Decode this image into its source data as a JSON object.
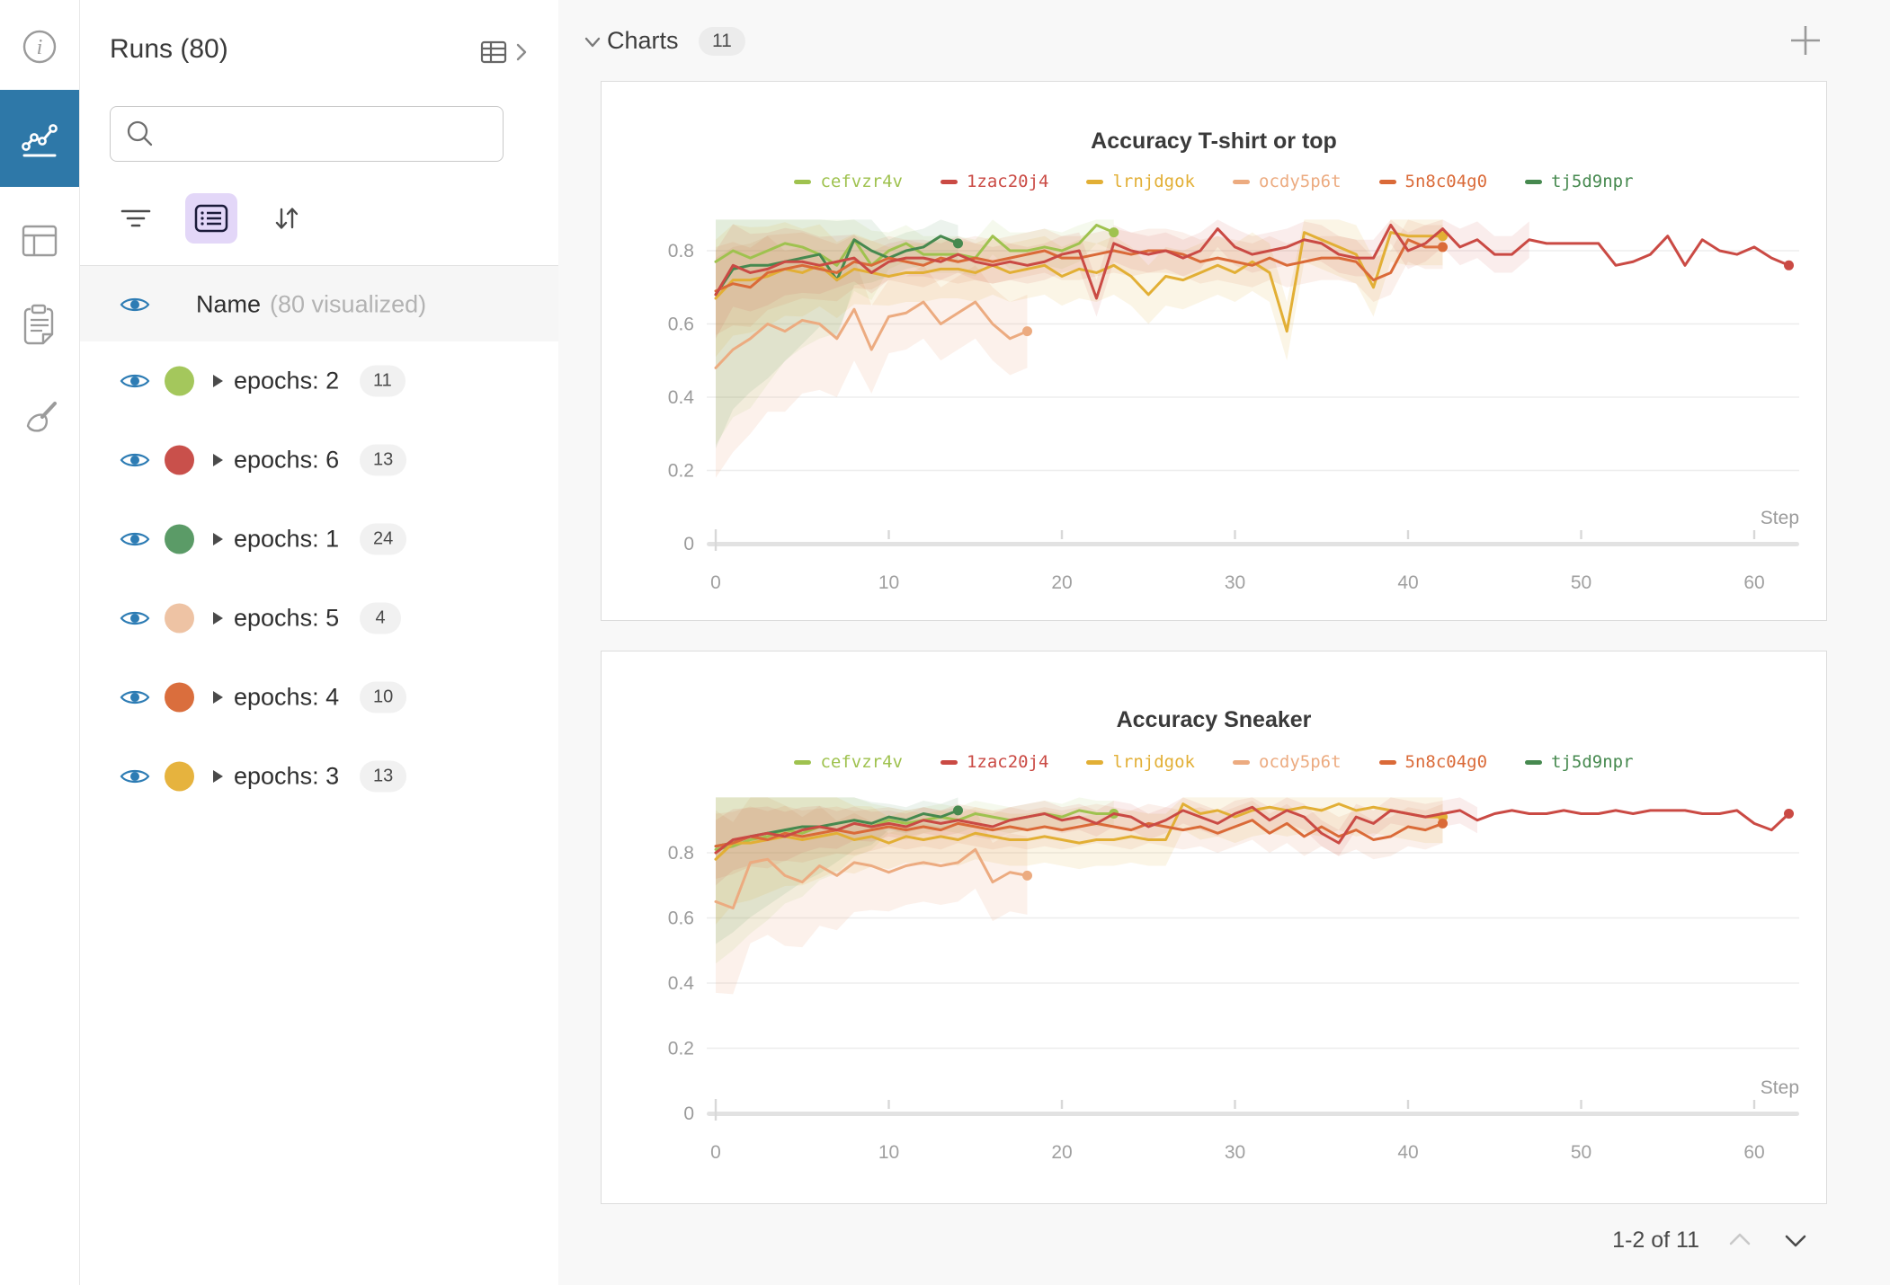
{
  "rail": {
    "icons": [
      {
        "icon": "info-icon",
        "active": false
      },
      {
        "icon": "line-chart-icon",
        "active": true
      },
      {
        "icon": "table-icon",
        "active": false
      },
      {
        "icon": "clipboard-icon",
        "active": false
      },
      {
        "icon": "broom-icon",
        "active": false
      }
    ],
    "active_color": "#2e78a8"
  },
  "runs_panel": {
    "title": "Runs (80)",
    "search": {
      "placeholder": "",
      "value": ""
    },
    "toolbar": {
      "filter_icon": "filter",
      "list_icon": "list-settings",
      "sort_icon": "sort"
    },
    "name_row": {
      "label": "Name",
      "sub": "(80 visualized)"
    },
    "eye_color": "#2d7cb4",
    "groups": [
      {
        "label": "epochs: 2",
        "count": "11",
        "color": "#a4c75c"
      },
      {
        "label": "epochs: 6",
        "count": "13",
        "color": "#c9504b"
      },
      {
        "label": "epochs: 1",
        "count": "24",
        "color": "#5b9b67"
      },
      {
        "label": "epochs: 5",
        "count": "4",
        "color": "#eec3a4"
      },
      {
        "label": "epochs: 4",
        "count": "10",
        "color": "#da6e3d"
      },
      {
        "label": "epochs: 3",
        "count": "13",
        "color": "#e6b33e"
      }
    ]
  },
  "main": {
    "section": {
      "label": "Charts",
      "count": "11"
    },
    "pagination": {
      "label": "1-2 of 11"
    }
  },
  "chart_data": [
    {
      "type": "line",
      "title": "Accuracy T-shirt or top",
      "xlabel": "Step",
      "x_ticks": [
        0,
        10,
        20,
        30,
        40,
        50,
        60
      ],
      "y_ticks": [
        0,
        0.2,
        0.4,
        0.6,
        0.8
      ],
      "xlim": [
        0,
        63
      ],
      "ylim": [
        0,
        0.9
      ],
      "grid": true,
      "legend_position": "top",
      "band_cap": 0.885,
      "series": [
        {
          "name": "cefvzr4v",
          "color": "#9fc24f",
          "band": [
            0.5,
            0.05,
            0.1
          ],
          "values": [
            0.77,
            0.8,
            0.78,
            0.8,
            0.82,
            0.81,
            0.79,
            0.76,
            0.83,
            0.76,
            0.8,
            0.82,
            0.79,
            0.79,
            0.79,
            0.78,
            0.84,
            0.8,
            0.8,
            0.81,
            0.8,
            0.82,
            0.87,
            0.85
          ]
        },
        {
          "name": "1zac20j4",
          "color": "#ca4a44",
          "band": [
            0.12,
            0.05,
            0.1
          ],
          "band_until": 47,
          "values": [
            0.68,
            0.76,
            0.74,
            0.75,
            0.77,
            0.77,
            0.76,
            0.77,
            0.78,
            0.74,
            0.77,
            0.78,
            0.78,
            0.77,
            0.79,
            0.77,
            0.76,
            0.77,
            0.76,
            0.77,
            0.79,
            0.8,
            0.67,
            0.82,
            0.8,
            0.79,
            0.8,
            0.78,
            0.8,
            0.86,
            0.81,
            0.79,
            0.8,
            0.81,
            0.83,
            0.82,
            0.79,
            0.78,
            0.78,
            0.87,
            0.8,
            0.82,
            0.86,
            0.81,
            0.83,
            0.79,
            0.79,
            0.83,
            0.82,
            0.82,
            0.82,
            0.82,
            0.76,
            0.77,
            0.79,
            0.84,
            0.76,
            0.83,
            0.8,
            0.79,
            0.81,
            0.78,
            0.76
          ]
        },
        {
          "name": "lrnjdgok",
          "color": "#e2af35",
          "band": [
            0.16,
            0.08,
            0.12
          ],
          "values": [
            0.67,
            0.72,
            0.72,
            0.73,
            0.75,
            0.74,
            0.76,
            0.72,
            0.75,
            0.74,
            0.73,
            0.74,
            0.74,
            0.75,
            0.75,
            0.74,
            0.76,
            0.74,
            0.75,
            0.76,
            0.73,
            0.75,
            0.74,
            0.76,
            0.73,
            0.68,
            0.73,
            0.72,
            0.74,
            0.76,
            0.74,
            0.77,
            0.74,
            0.58,
            0.85,
            0.83,
            0.81,
            0.79,
            0.7,
            0.85,
            0.84,
            0.84,
            0.84
          ]
        },
        {
          "name": "ocdy5p6t",
          "color": "#ecab80",
          "band": [
            0.3,
            0.1,
            0.16
          ],
          "values": [
            0.48,
            0.53,
            0.56,
            0.6,
            0.58,
            0.61,
            0.6,
            0.56,
            0.64,
            0.53,
            0.62,
            0.63,
            0.66,
            0.6,
            0.63,
            0.66,
            0.6,
            0.56,
            0.58
          ]
        },
        {
          "name": "5n8c04g0",
          "color": "#da6a38",
          "band": [
            0.12,
            0.06,
            0.1
          ],
          "values": [
            0.69,
            0.71,
            0.7,
            0.74,
            0.75,
            0.76,
            0.75,
            0.74,
            0.77,
            0.76,
            0.78,
            0.77,
            0.76,
            0.78,
            0.77,
            0.78,
            0.77,
            0.78,
            0.79,
            0.8,
            0.78,
            0.78,
            0.79,
            0.8,
            0.79,
            0.8,
            0.8,
            0.79,
            0.77,
            0.78,
            0.77,
            0.76,
            0.78,
            0.76,
            0.77,
            0.78,
            0.78,
            0.77,
            0.72,
            0.74,
            0.83,
            0.81,
            0.81
          ]
        },
        {
          "name": "tj5d9npr",
          "color": "#46894f",
          "band": [
            0.42,
            0.05,
            0.1
          ],
          "values": [
            0.68,
            0.75,
            0.76,
            0.76,
            0.77,
            0.78,
            0.79,
            0.72,
            0.83,
            0.8,
            0.78,
            0.8,
            0.81,
            0.84,
            0.82
          ]
        }
      ]
    },
    {
      "type": "line",
      "title": "Accuracy Sneaker",
      "xlabel": "Step",
      "x_ticks": [
        0,
        10,
        20,
        30,
        40,
        50,
        60
      ],
      "y_ticks": [
        0,
        0.2,
        0.4,
        0.6,
        0.8
      ],
      "xlim": [
        0,
        63
      ],
      "ylim": [
        0,
        0.97
      ],
      "grid": true,
      "legend_position": "top",
      "band_cap": 0.97,
      "series": [
        {
          "name": "cefvzr4v",
          "color": "#9fc24f",
          "band": [
            0.35,
            0.04,
            0.1
          ],
          "values": [
            0.81,
            0.82,
            0.84,
            0.85,
            0.87,
            0.86,
            0.88,
            0.87,
            0.89,
            0.88,
            0.9,
            0.89,
            0.9,
            0.91,
            0.9,
            0.92,
            0.91,
            0.9,
            0.91,
            0.92,
            0.91,
            0.93,
            0.92,
            0.92
          ]
        },
        {
          "name": "1zac20j4",
          "color": "#ca4a44",
          "band": [
            0.1,
            0.04,
            0.1
          ],
          "band_until": 44,
          "values": [
            0.8,
            0.84,
            0.85,
            0.86,
            0.85,
            0.87,
            0.88,
            0.87,
            0.89,
            0.88,
            0.89,
            0.88,
            0.9,
            0.89,
            0.9,
            0.89,
            0.88,
            0.9,
            0.91,
            0.92,
            0.9,
            0.91,
            0.89,
            0.92,
            0.91,
            0.88,
            0.9,
            0.93,
            0.91,
            0.89,
            0.92,
            0.94,
            0.9,
            0.93,
            0.91,
            0.86,
            0.83,
            0.91,
            0.89,
            0.93,
            0.92,
            0.91,
            0.92,
            0.93,
            0.9,
            0.92,
            0.93,
            0.92,
            0.92,
            0.93,
            0.92,
            0.92,
            0.93,
            0.92,
            0.93,
            0.93,
            0.93,
            0.92,
            0.92,
            0.93,
            0.89,
            0.87,
            0.92
          ]
        },
        {
          "name": "lrnjdgok",
          "color": "#e2af35",
          "band": [
            0.2,
            0.08,
            0.12
          ],
          "values": [
            0.78,
            0.83,
            0.83,
            0.84,
            0.85,
            0.84,
            0.85,
            0.86,
            0.84,
            0.85,
            0.83,
            0.85,
            0.84,
            0.85,
            0.84,
            0.86,
            0.85,
            0.84,
            0.84,
            0.85,
            0.84,
            0.83,
            0.84,
            0.84,
            0.85,
            0.84,
            0.84,
            0.95,
            0.92,
            0.93,
            0.91,
            0.93,
            0.94,
            0.93,
            0.94,
            0.93,
            0.95,
            0.93,
            0.94,
            0.93,
            0.92,
            0.91,
            0.91
          ]
        },
        {
          "name": "ocdy5p6t",
          "color": "#ecab80",
          "band": [
            0.28,
            0.12,
            0.16
          ],
          "values": [
            0.65,
            0.63,
            0.77,
            0.78,
            0.73,
            0.71,
            0.76,
            0.73,
            0.77,
            0.76,
            0.74,
            0.76,
            0.77,
            0.76,
            0.77,
            0.81,
            0.71,
            0.74,
            0.73
          ]
        },
        {
          "name": "5n8c04g0",
          "color": "#da6a38",
          "band": [
            0.1,
            0.06,
            0.1
          ],
          "values": [
            0.82,
            0.83,
            0.85,
            0.84,
            0.86,
            0.85,
            0.86,
            0.87,
            0.86,
            0.87,
            0.88,
            0.87,
            0.88,
            0.87,
            0.89,
            0.88,
            0.87,
            0.88,
            0.87,
            0.88,
            0.87,
            0.88,
            0.89,
            0.88,
            0.87,
            0.89,
            0.88,
            0.87,
            0.88,
            0.86,
            0.88,
            0.9,
            0.86,
            0.89,
            0.85,
            0.88,
            0.85,
            0.87,
            0.84,
            0.85,
            0.88,
            0.87,
            0.89
          ]
        },
        {
          "name": "tj5d9npr",
          "color": "#46894f",
          "band": [
            0.3,
            0.04,
            0.1
          ],
          "values": [
            0.82,
            0.83,
            0.85,
            0.86,
            0.87,
            0.88,
            0.88,
            0.89,
            0.9,
            0.89,
            0.91,
            0.9,
            0.92,
            0.91,
            0.93
          ]
        }
      ]
    }
  ]
}
